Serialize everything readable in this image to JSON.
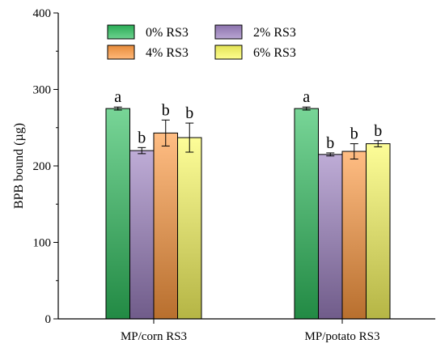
{
  "chart_data": {
    "type": "bar",
    "title": "",
    "xlabel": "",
    "ylabel": "BPB bound (µg)",
    "ylim": [
      0,
      400
    ],
    "yticks": [
      0,
      100,
      200,
      300,
      400
    ],
    "grid": false,
    "legend_position": "top-left",
    "categories": [
      "MP/corn RS3",
      "MP/potato RS3"
    ],
    "series": [
      {
        "name": "0% RS3",
        "color": "#2fbf5f",
        "values": [
          275,
          275
        ],
        "errors": [
          2,
          2
        ],
        "labels": [
          "a",
          "a"
        ]
      },
      {
        "name": "2% RS3",
        "color": "#9b80c0",
        "values": [
          220,
          215
        ],
        "errors": [
          4,
          2
        ],
        "labels": [
          "b",
          "b"
        ]
      },
      {
        "name": "4% RS3",
        "color": "#ff9a40",
        "values": [
          243,
          219
        ],
        "errors": [
          17,
          10
        ],
        "labels": [
          "b",
          "b"
        ]
      },
      {
        "name": "6% RS3",
        "color": "#fcfc60",
        "values": [
          237,
          229
        ],
        "errors": [
          19,
          4
        ],
        "labels": [
          "b",
          "b"
        ]
      }
    ]
  }
}
